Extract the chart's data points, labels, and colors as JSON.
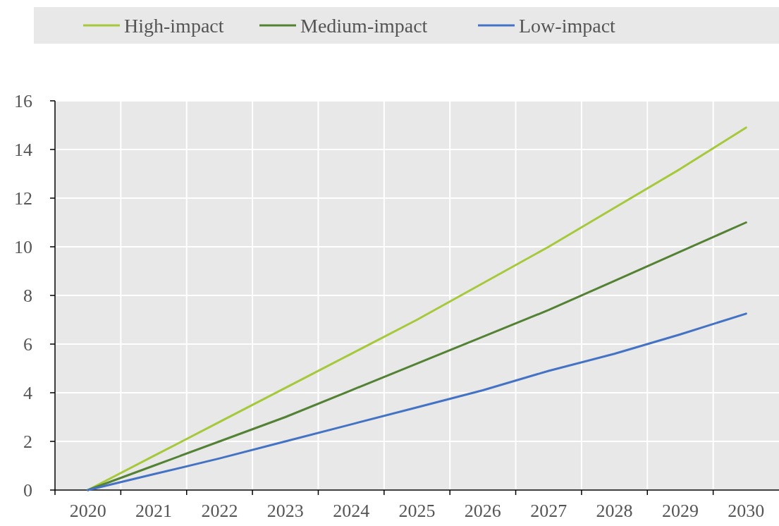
{
  "chart_data": {
    "type": "line",
    "categories": [
      "2020",
      "2021",
      "2022",
      "2023",
      "2024",
      "2025",
      "2026",
      "2027",
      "2028",
      "2029",
      "2030"
    ],
    "series": [
      {
        "name": "High-impact",
        "color": "#a5c93a",
        "values": [
          0,
          1.4,
          2.8,
          4.2,
          5.6,
          7.0,
          8.5,
          10.0,
          11.6,
          13.2,
          14.9
        ]
      },
      {
        "name": "Medium-impact",
        "color": "#548235",
        "values": [
          0,
          1.0,
          2.0,
          3.0,
          4.1,
          5.2,
          6.3,
          7.4,
          8.6,
          9.8,
          11.0
        ]
      },
      {
        "name": "Low-impact",
        "color": "#4472c4",
        "values": [
          0,
          0.65,
          1.3,
          2.0,
          2.7,
          3.4,
          4.1,
          4.9,
          5.6,
          6.4,
          7.25
        ]
      }
    ],
    "ylim": [
      0,
      16
    ],
    "yticks": [
      0,
      2,
      4,
      6,
      8,
      10,
      12,
      14,
      16
    ],
    "grid": true,
    "legend": "top",
    "marker": "none",
    "line_style": "solid"
  }
}
